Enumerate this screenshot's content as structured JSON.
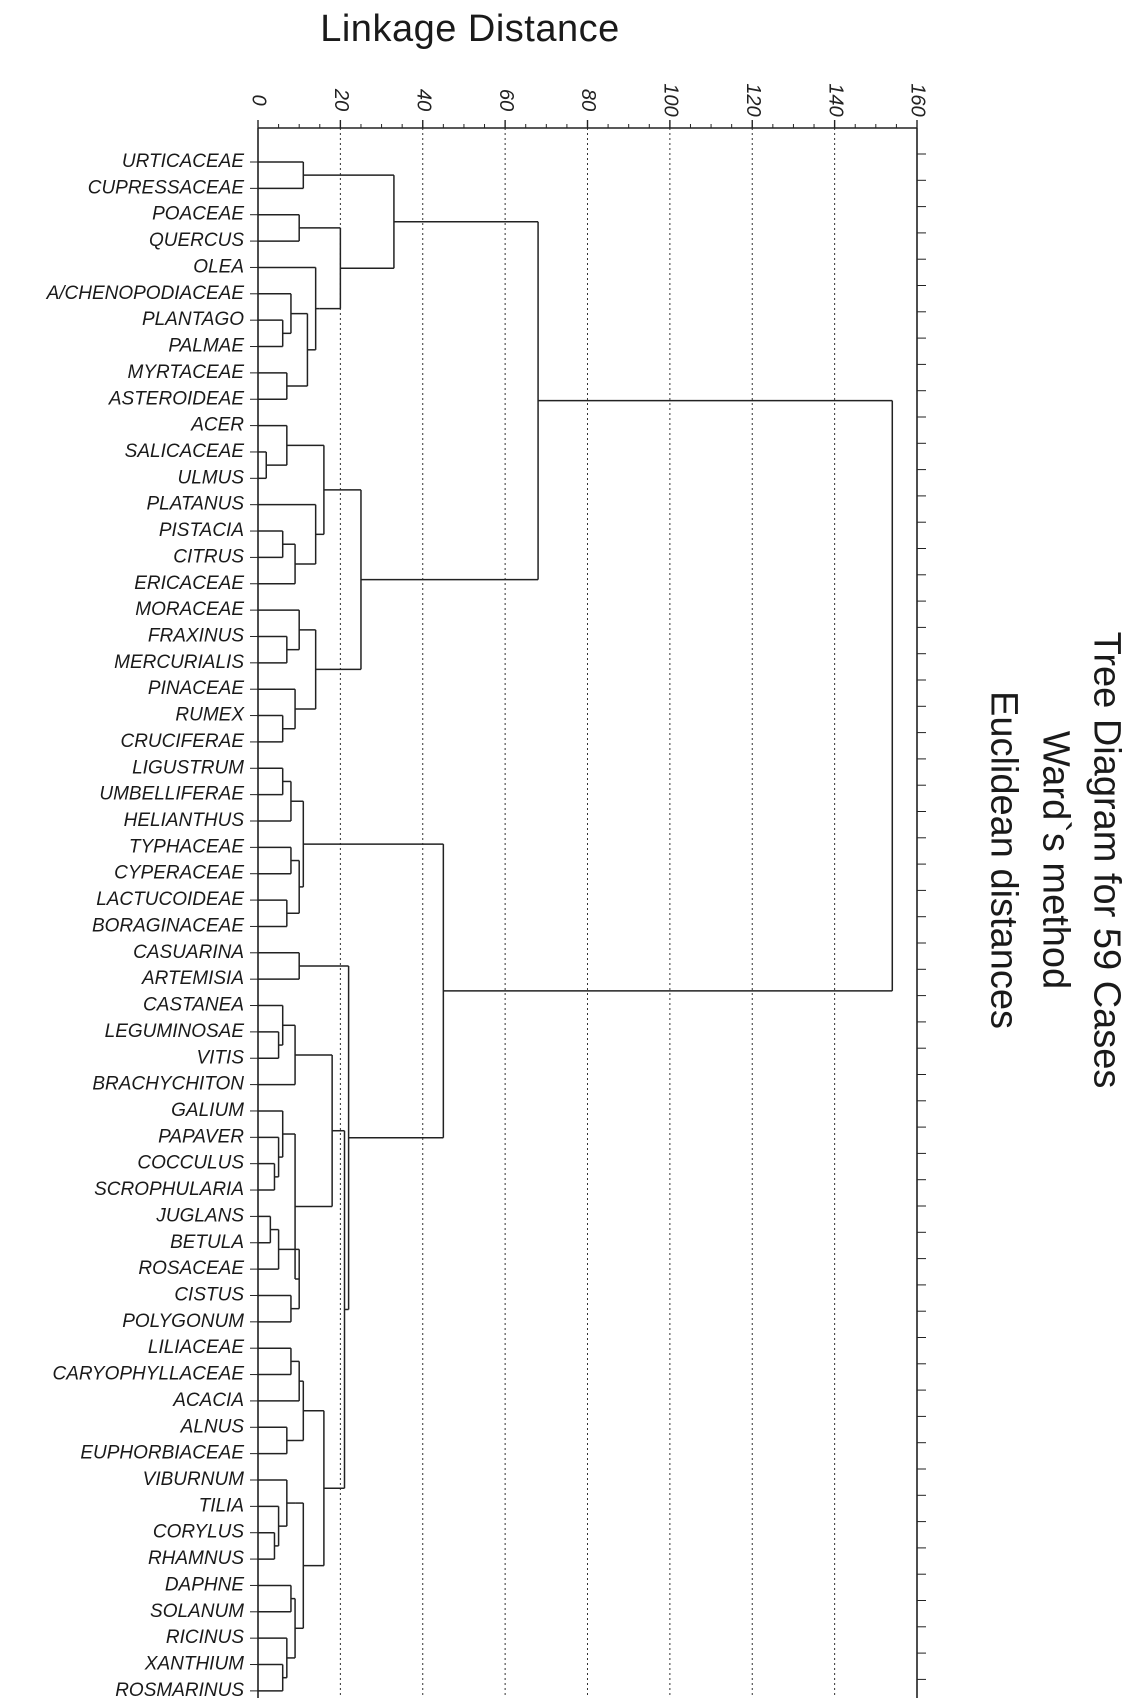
{
  "chart_data": {
    "type": "dendrogram",
    "title": "Tree Diagram for 59 Cases",
    "subtitle": "Ward`s method",
    "subtitle2": "Euclidean distances",
    "xlabel": "Linkage Distance",
    "xlim": [
      0,
      160
    ],
    "grid": true,
    "ticks": [
      0,
      20,
      40,
      60,
      80,
      100,
      120,
      140,
      160
    ],
    "tick_labels": [
      "0",
      "20",
      "40",
      "60",
      "80",
      "100",
      "120",
      "140",
      "160"
    ],
    "leaves": [
      "URTICACEAE",
      "CUPRESSACEAE",
      "POACEAE",
      "QUERCUS",
      "OLEA",
      "A/CHENOPODIACEAE",
      "PLANTAGO",
      "PALMAE",
      "MYRTACEAE",
      "ASTEROIDEAE",
      "ACER",
      "SALICACEAE",
      "ULMUS",
      "PLATANUS",
      "PISTACIA",
      "CITRUS",
      "ERICACEAE",
      "MORACEAE",
      "FRAXINUS",
      "MERCURIALIS",
      "PINACEAE",
      "RUMEX",
      "CRUCIFERAE",
      "LIGUSTRUM",
      "UMBELLIFERAE",
      "HELIANTHUS",
      "TYPHACEAE",
      "CYPERACEAE",
      "LACTUCOIDEAE",
      "BORAGINACEAE",
      "CASUARINA",
      "ARTEMISIA",
      "CASTANEA",
      "LEGUMINOSAE",
      "VITIS",
      "BRACHYCHITON",
      "GALIUM",
      "PAPAVER",
      "COCCULUS",
      "SCROPHULARIA",
      "JUGLANS",
      "BETULA",
      "ROSACEAE",
      "CISTUS",
      "POLYGONUM",
      "LILIACEAE",
      "CARYOPHYLLACEAE",
      "ACACIA",
      "ALNUS",
      "EUPHORBIACEAE",
      "VIBURNUM",
      "TILIA",
      "CORYLUS",
      "RHAMNUS",
      "DAPHNE",
      "SOLANUM",
      "RICINUS",
      "XANTHIUM",
      "ROSMARINUS"
    ],
    "tree": [
      154,
      [
        68,
        [
          33,
          [
            11,
            "URTICACEAE",
            "CUPRESSACEAE"
          ],
          [
            20,
            [
              10,
              "POACEAE",
              "QUERCUS"
            ],
            [
              15,
              [
                14,
                "OLEA",
                [
                  12,
                  [
                    8,
                    "A/CHENOPODIACEAE",
                    [
                      6,
                      "PLANTAGO",
                      "PALMAE"
                    ]
                  ],
                  [
                    7,
                    "MYRTACEAE",
                    "ASTEROIDEAE"
                  ]
                ]
              ]
            ]
          ]
        ],
        [
          25,
          [
            16,
            [
              7,
              "ACER",
              [
                2,
                "SALICACEAE",
                "ULMUS"
              ]
            ],
            [
              14,
              "PLATANUS",
              [
                9,
                [
                  6,
                  "PISTACIA",
                  "CITRUS"
                ],
                "ERICACEAE"
              ]
            ]
          ],
          [
            14,
            [
              10,
              "MORACEAE",
              [
                7,
                "FRAXINUS",
                "MERCURIALIS"
              ]
            ],
            [
              9,
              "PINACEAE",
              [
                6,
                "RUMEX",
                "CRUCIFERAE"
              ]
            ]
          ]
        ]
      ],
      [
        45,
        [
          11,
          [
            8,
            [
              6,
              "LIGUSTRUM",
              "UMBELLIFERAE"
            ],
            "HELIANTHUS"
          ],
          [
            10,
            [
              8,
              "TYPHACEAE",
              "CYPERACEAE"
            ],
            [
              7,
              "LACTUCOIDEAE",
              "BORAGINACEAE"
            ]
          ]
        ],
        [
          22,
          [
            10,
            "CASUARINA",
            "ARTEMISIA"
          ],
          [
            21,
            [
              18,
              [
                9,
                [
                  6,
                  "CASTANEA",
                  [
                    5,
                    "LEGUMINOSAE",
                    "VITIS"
                  ]
                ],
                "BRACHYCHITON"
              ],
              [
                9,
                [
                  6,
                  "GALIUM",
                  [
                    5,
                    "PAPAVER",
                    [
                      4,
                      "COCCULUS",
                      "SCROPHULARIA"
                    ]
                  ]
                ],
                [
                  10,
                  [
                    5,
                    [
                      3,
                      "JUGLANS",
                      "BETULA"
                    ],
                    "ROSACEAE"
                  ],
                  [
                    8,
                    "CISTUS",
                    "POLYGONUM"
                  ]
                ]
              ]
            ],
            [
              16,
              [
                11,
                [
                  10,
                  [
                    8,
                    "LILIACEAE",
                    "CARYOPHYLLACEAE"
                  ],
                  "ACACIA"
                ],
                [
                  7,
                  "ALNUS",
                  "EUPHORBIACEAE"
                ]
              ],
              [
                11,
                [
                  9,
                  [
                    7,
                    "VIBURNUM",
                    [
                      5,
                      "TILIA",
                      [
                        4,
                        "CORYLUS",
                        "RHAMNUS"
                      ]
                    ]
                  ]
                ],
                [
                  9,
                  [
                    8,
                    "DAPHNE",
                    "SOLANUM"
                  ],
                  [
                    7,
                    "RICINUS",
                    [
                      6,
                      "XANTHIUM",
                      "ROSMARINUS"
                    ]
                  ]
                ]
              ]
            ]
          ]
        ]
      ]
    ]
  }
}
